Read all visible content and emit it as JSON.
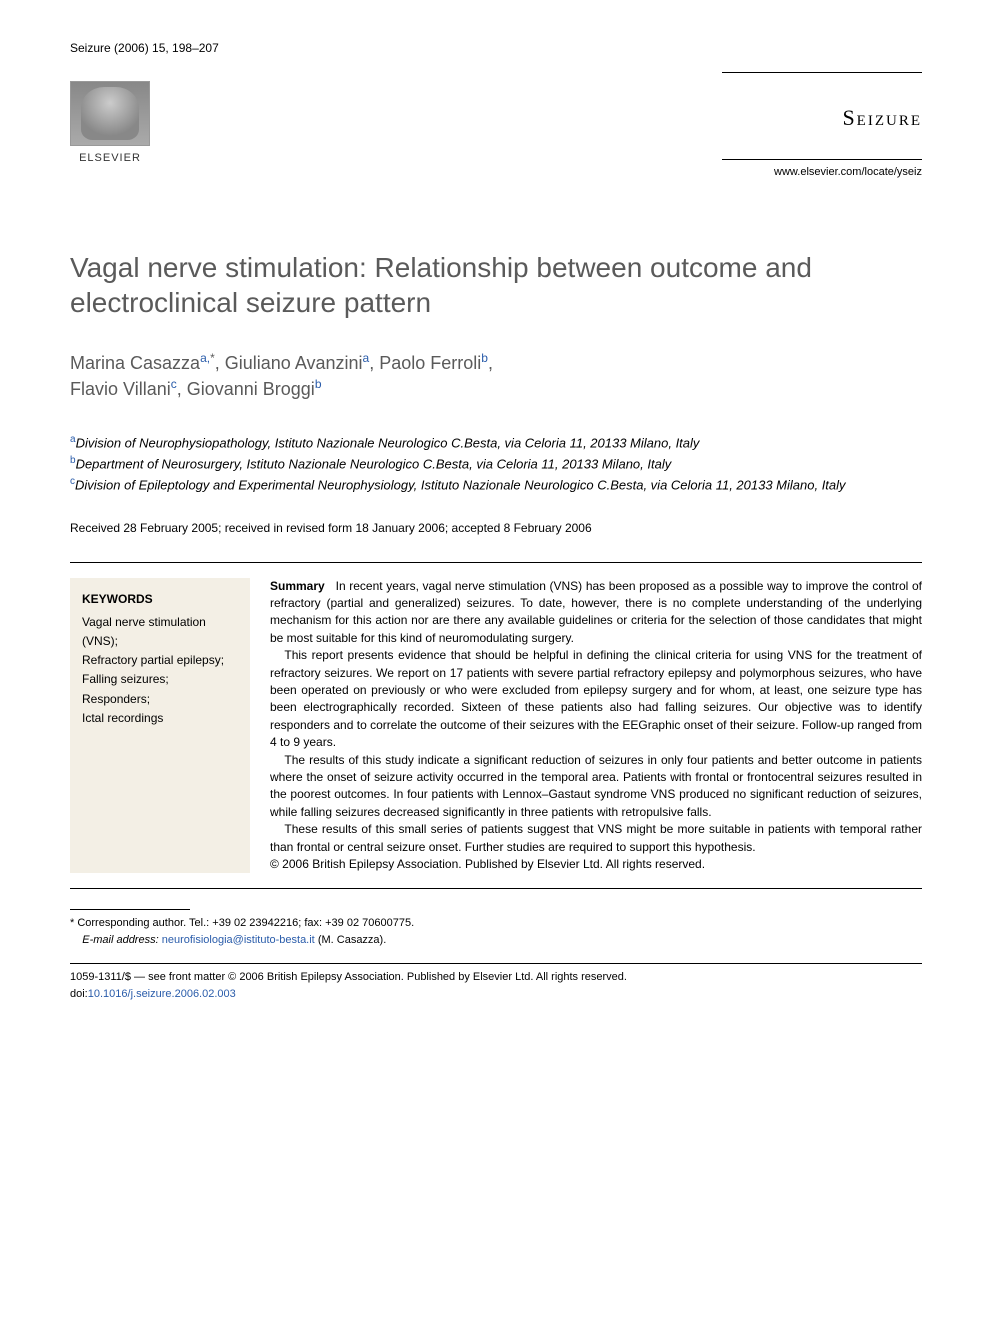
{
  "header": {
    "citation": "Seizure (2006) 15, 198–207",
    "publisher_name": "ELSEVIER",
    "journal_name": "Seizure",
    "journal_url": "www.elsevier.com/locate/yseiz"
  },
  "title": "Vagal nerve stimulation: Relationship between outcome and electroclinical seizure pattern",
  "authors": [
    {
      "name": "Marina Casazza",
      "affil": "a,*"
    },
    {
      "name": "Giuliano Avanzini",
      "affil": "a"
    },
    {
      "name": "Paolo Ferroli",
      "affil": "b"
    },
    {
      "name": "Flavio Villani",
      "affil": "c"
    },
    {
      "name": "Giovanni Broggi",
      "affil": "b"
    }
  ],
  "affiliations": {
    "a": "Division of Neurophysiopathology, Istituto Nazionale Neurologico C.Besta, via Celoria 11, 20133 Milano, Italy",
    "b": "Department of Neurosurgery, Istituto Nazionale Neurologico C.Besta, via Celoria 11, 20133 Milano, Italy",
    "c": "Division of Epileptology and Experimental Neurophysiology, Istituto Nazionale Neurologico C.Besta, via Celoria 11, 20133 Milano, Italy"
  },
  "received": "Received 28 February 2005; received in revised form 18 January 2006; accepted 8 February 2006",
  "keywords": {
    "title": "KEYWORDS",
    "items": "Vagal nerve stimulation (VNS);\nRefractory partial epilepsy;\nFalling seizures;\nResponders;\nIctal recordings"
  },
  "summary": {
    "label": "Summary",
    "p1": "In recent years, vagal nerve stimulation (VNS) has been proposed as a possible way to improve the control of refractory (partial and generalized) seizures. To date, however, there is no complete understanding of the underlying mechanism for this action nor are there any available guidelines or criteria for the selection of those candidates that might be most suitable for this kind of neuromodulating surgery.",
    "p2": "This report presents evidence that should be helpful in defining the clinical criteria for using VNS for the treatment of refractory seizures. We report on 17 patients with severe partial refractory epilepsy and polymorphous seizures, who have been operated on previously or who were excluded from epilepsy surgery and for whom, at least, one seizure type has been electrographically recorded. Sixteen of these patients also had falling seizures. Our objective was to identify responders and to correlate the outcome of their seizures with the EEGraphic onset of their seizure. Follow-up ranged from 4 to 9 years.",
    "p3": "The results of this study indicate a significant reduction of seizures in only four patients and better outcome in patients where the onset of seizure activity occurred in the temporal area. Patients with frontal or frontocentral seizures resulted in the poorest outcomes. In four patients with Lennox–Gastaut syndrome VNS produced no significant reduction of seizures, while falling seizures decreased significantly in three patients with retropulsive falls.",
    "p4": "These results of this small series of patients suggest that VNS might be more suitable in patients with temporal rather than frontal or central seizure onset. Further studies are required to support this hypothesis.",
    "copyright": "© 2006 British Epilepsy Association. Published by Elsevier Ltd. All rights reserved."
  },
  "footnotes": {
    "corresponding": "* Corresponding author. Tel.: +39 02 23942216; fax: +39 02 70600775.",
    "email_label": "E-mail address:",
    "email": "neurofisiologia@istituto-besta.it",
    "email_author": "(M. Casazza)."
  },
  "footer": {
    "front_matter": "1059-1311/$ — see front matter © 2006 British Epilepsy Association. Published by Elsevier Ltd. All rights reserved.",
    "doi_label": "doi:",
    "doi": "10.1016/j.seizure.2006.02.003"
  },
  "colors": {
    "text_gray": "#5a5a5a",
    "link_blue": "#2a5caa",
    "keywords_bg": "#f3efe5",
    "body_text": "#000000",
    "background": "#ffffff"
  },
  "typography": {
    "title_fontsize": 28,
    "authors_fontsize": 18,
    "body_fontsize": 13,
    "abstract_fontsize": 12,
    "footnote_fontsize": 11,
    "journal_fontsize": 22
  }
}
